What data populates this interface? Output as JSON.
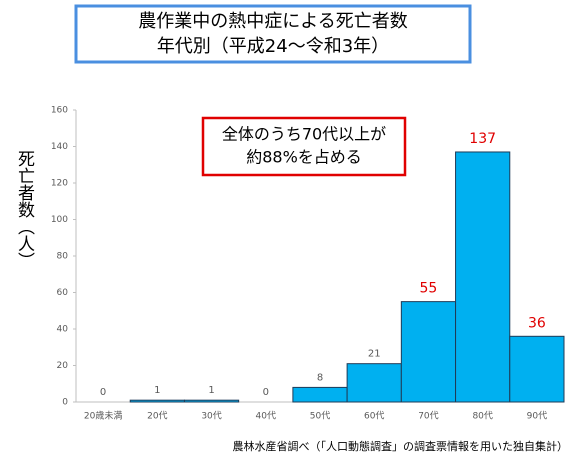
{
  "chart_data": {
    "type": "bar",
    "title": "農作業中の熱中症による死亡者数",
    "subtitle": "年代別（平成24～令和3年）",
    "y_label": "死亡者数（人）",
    "annotation": [
      "全体のうち70代以上が",
      "約88%を占める"
    ],
    "source": "農林水産省調べ（「人口動態調査」の調査票情報を用いた独自集計）",
    "categories": [
      "20歳未満",
      "20代",
      "30代",
      "40代",
      "50代",
      "60代",
      "70代",
      "80代",
      "90代"
    ],
    "values": [
      0,
      1,
      1,
      0,
      8,
      21,
      55,
      137,
      36
    ],
    "color": "#00b0f0",
    "label_colors": [
      "#595959",
      "#595959",
      "#595959",
      "#595959",
      "#595959",
      "#595959",
      "#e00000",
      "#e00000",
      "#e00000"
    ],
    "ylim": [
      0,
      160
    ],
    "yticks": [
      0,
      20,
      40,
      60,
      80,
      100,
      120,
      140,
      160
    ],
    "grid": false
  }
}
